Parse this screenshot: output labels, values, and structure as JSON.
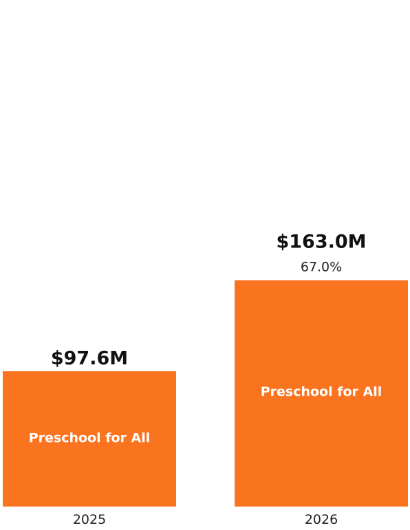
{
  "chart_data": {
    "type": "bar",
    "categories": [
      "2025",
      "2026"
    ],
    "series": [
      {
        "name": "Preschool for All",
        "values": [
          97.6,
          163.0
        ]
      }
    ],
    "data_labels": [
      "$97.6M",
      "$163.0M"
    ],
    "change_labels": [
      "",
      "67.0%"
    ],
    "bar_labels": [
      "Preschool for All",
      "Preschool for All"
    ],
    "unit": "$M",
    "ylim": [
      0,
      175
    ],
    "grid": false,
    "legend": "none",
    "colors": {
      "bar": "#FA7420",
      "bar_text": "#FFFFFF",
      "text": "#111111"
    }
  }
}
